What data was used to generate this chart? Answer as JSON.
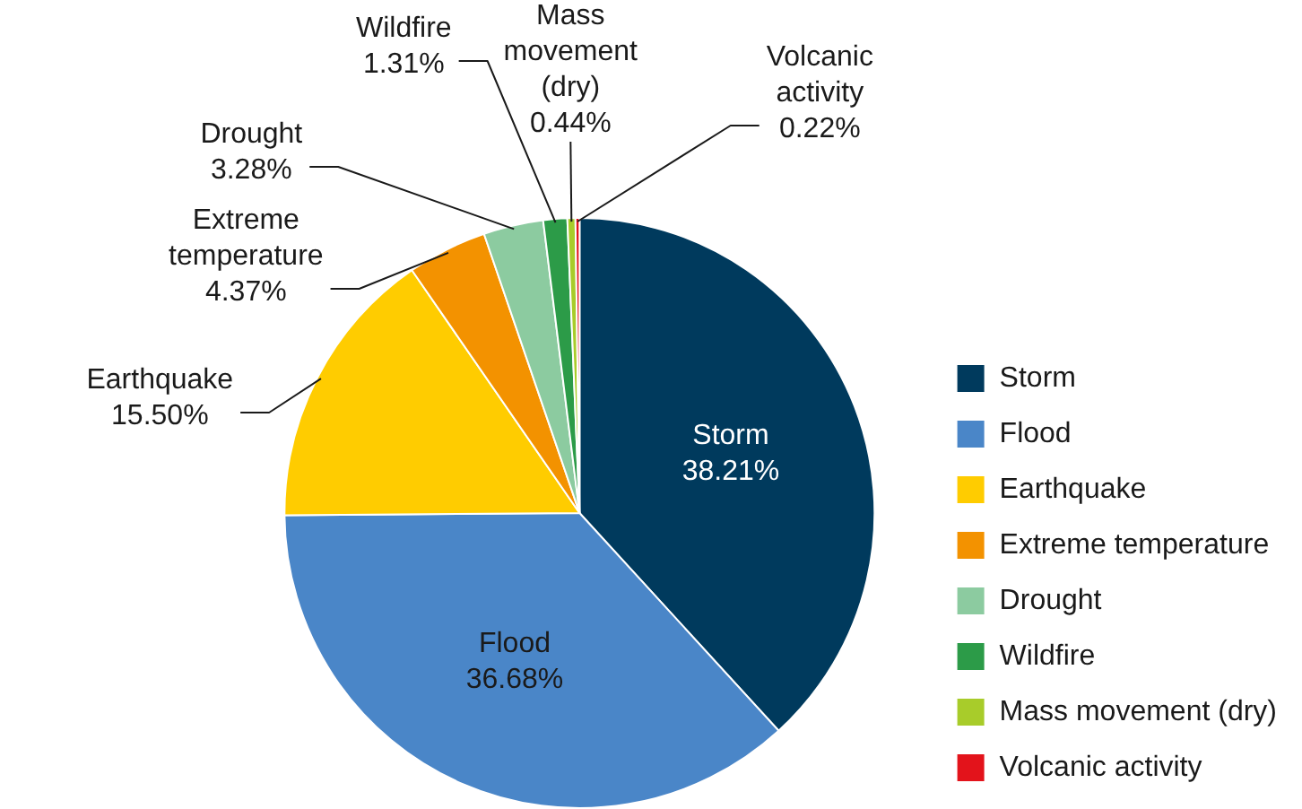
{
  "chart_data": {
    "type": "pie",
    "categories": [
      "Storm",
      "Flood",
      "Earthquake",
      "Extreme temperature",
      "Drought",
      "Wildfire",
      "Mass movement (dry)",
      "Volcanic activity"
    ],
    "values": [
      38.21,
      36.68,
      15.5,
      4.37,
      3.28,
      1.31,
      0.44,
      0.22
    ],
    "value_labels": [
      "38.21%",
      "36.68%",
      "15.50%",
      "4.37%",
      "3.28%",
      "1.31%",
      "0.44%",
      "0.22%"
    ],
    "colors": [
      "#003a5d",
      "#4a86c8",
      "#ffcc00",
      "#f39200",
      "#8ccba0",
      "#2c9b48",
      "#a8cc2a",
      "#e3131b"
    ],
    "legend": "right"
  }
}
